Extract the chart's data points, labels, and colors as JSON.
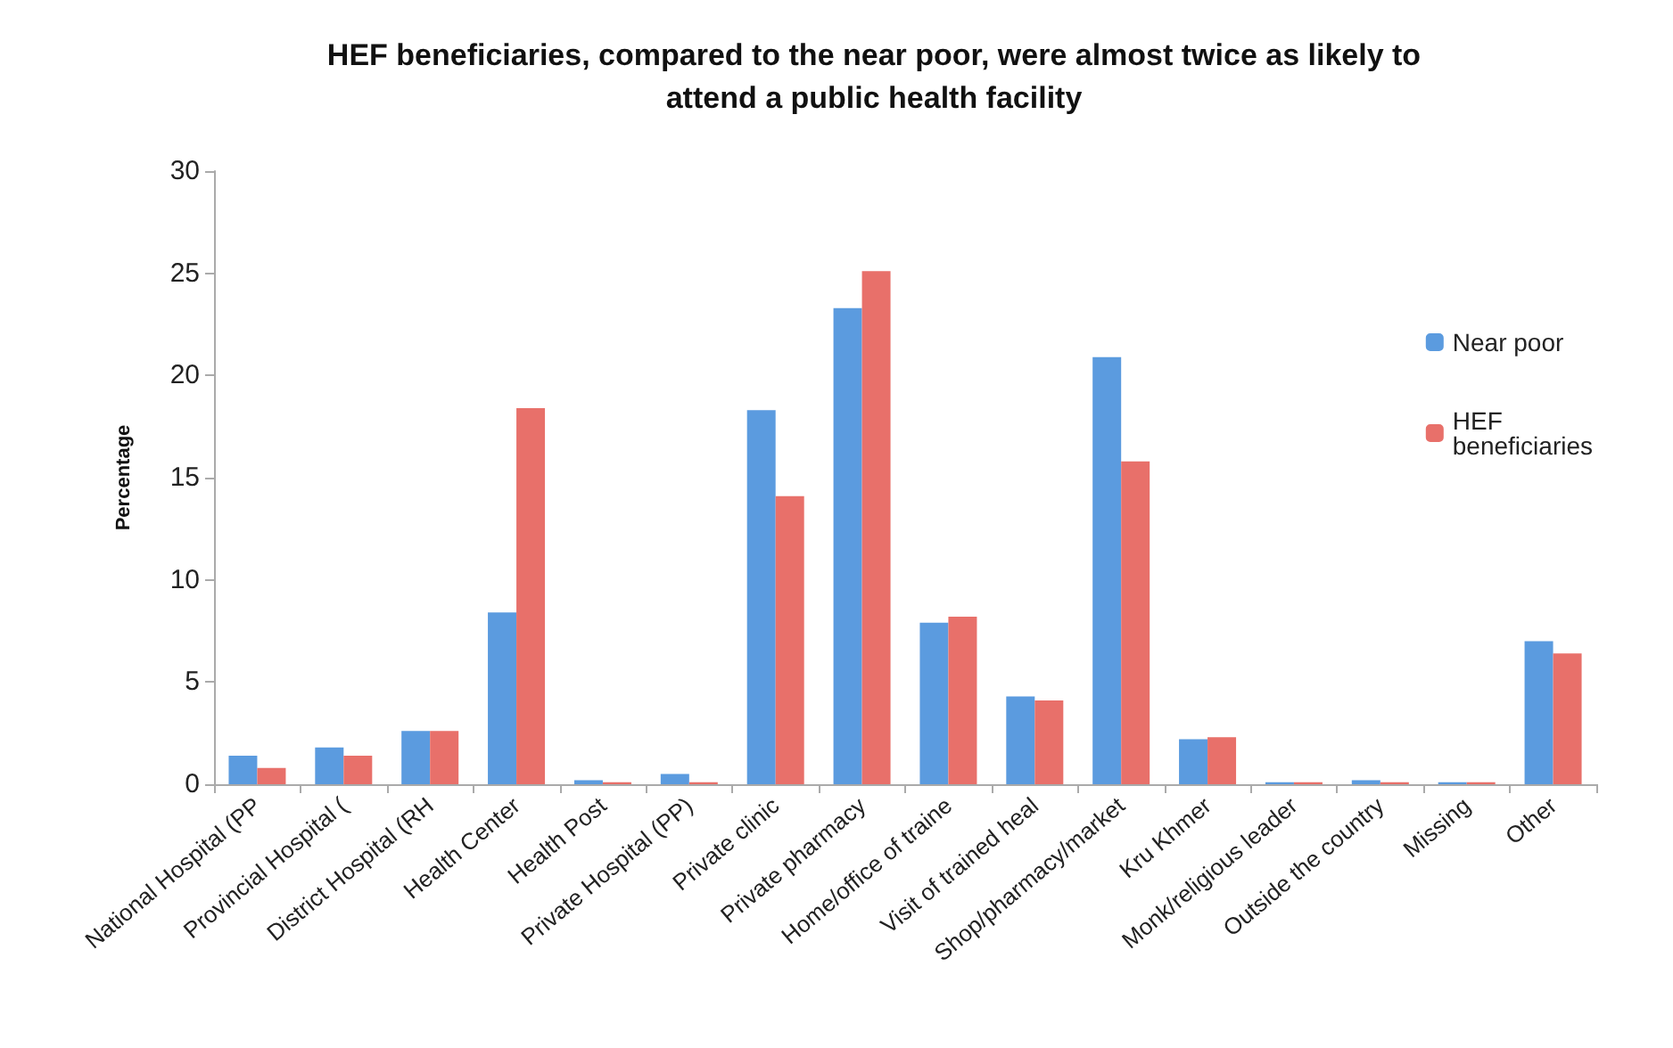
{
  "chart_data": {
    "type": "bar",
    "title": "HEF beneficiaries, compared to the near poor, were almost twice as likely to\nattend a public health facility",
    "ylabel": "Percentage",
    "categories": [
      "National Hospital (PP",
      "Provincial Hospital (",
      "District Hospital (RH",
      "Health Center",
      "Health Post",
      "Private Hospital (PP)",
      "Private clinic",
      "Private pharmacy",
      "Home/office of traine",
      "Visit of trained heal",
      "Shop/pharmacy/market",
      "Kru Khmer",
      "Monk/religious leader",
      "Outside the country",
      "Missing",
      "Other"
    ],
    "series": [
      {
        "name": "Near poor",
        "color": "#5b9bdf",
        "values": [
          1.4,
          1.8,
          2.6,
          8.4,
          0.2,
          0.5,
          18.3,
          23.3,
          7.9,
          4.3,
          20.9,
          2.2,
          0.1,
          0.2,
          0.1,
          7.0
        ]
      },
      {
        "name": "HEF beneficiaries",
        "color": "#e8706a",
        "values": [
          0.8,
          1.4,
          2.6,
          18.4,
          0.1,
          0.1,
          14.1,
          25.1,
          8.2,
          4.1,
          15.8,
          2.3,
          0.1,
          0.1,
          0.1,
          6.4
        ]
      }
    ],
    "ylim": [
      0,
      30
    ],
    "yticks": [
      0,
      5,
      10,
      15,
      20,
      25,
      30
    ],
    "grid": false,
    "legend": "right"
  }
}
